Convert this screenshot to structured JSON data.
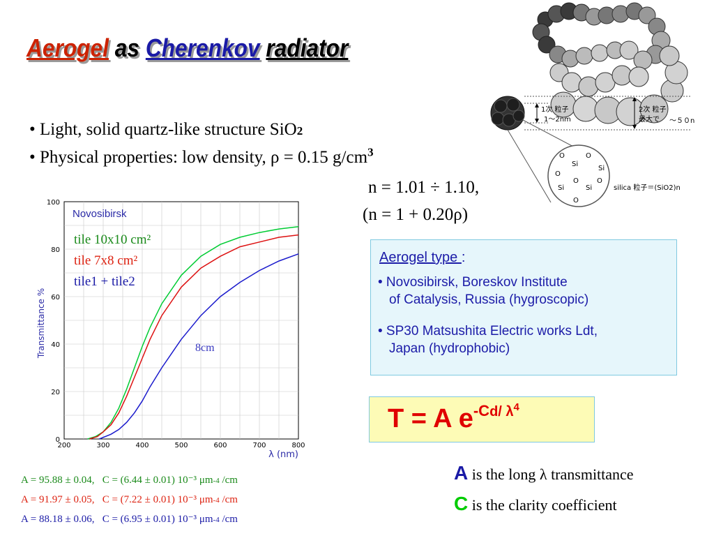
{
  "title": {
    "part1": "Aerogel",
    "part2": "as",
    "part3": "Cherenkov",
    "part4": "radiator"
  },
  "bullets": [
    {
      "bullet": "•",
      "text": "Light, solid quartz-like structure SiO",
      "sub": "2"
    },
    {
      "bullet": "•",
      "text": "Physical properties:  low density, ρ = 0.15 g/cm",
      "sup": "3"
    }
  ],
  "n_range": "n = 1.01 ÷ 1.10,",
  "n_formula": "(n = 1 + 0.20ρ)",
  "molecule": {
    "primary_label": "1次 粒子",
    "primary_size": "1〜2nm",
    "secondary_label": "2次 粒子",
    "secondary_size": "最大で",
    "secondary_extent": "〜５０n",
    "silica_label": "silica 粒子＝(SiO2)n",
    "si_atom": "Si",
    "o_atom": "O",
    "colors": {
      "dark": "#3a3a3a",
      "light": "#c8c8c8",
      "mid": "#8a8a8a"
    }
  },
  "chart_data": {
    "type": "line",
    "title": "Novosibirsk",
    "ylabel": "Transmittance %",
    "xlabel": "λ (nm)",
    "xlim": [
      200,
      800
    ],
    "ylim": [
      0,
      100
    ],
    "x_ticks": [
      "200",
      "300",
      "400",
      "500",
      "600",
      "700",
      "800"
    ],
    "y_ticks": [
      "0",
      "20",
      "40",
      "60",
      "80",
      "100"
    ],
    "annotation": "8cm",
    "series": [
      {
        "name": "tile 10x10 cm²",
        "color": "#00cc33",
        "x": [
          260,
          280,
          300,
          320,
          340,
          360,
          380,
          400,
          420,
          450,
          500,
          550,
          600,
          650,
          700,
          750,
          800
        ],
        "y": [
          0,
          1,
          3,
          7,
          13,
          21,
          30,
          39,
          47,
          57,
          69,
          77,
          82,
          85,
          87,
          88.5,
          89.5
        ]
      },
      {
        "name": "tile 7x8 cm²",
        "color": "#dd1111",
        "x": [
          265,
          285,
          300,
          320,
          340,
          360,
          380,
          400,
          420,
          450,
          500,
          550,
          600,
          650,
          700,
          750,
          800
        ],
        "y": [
          0,
          1,
          3,
          6,
          11,
          18,
          26,
          34,
          42,
          52,
          64,
          72,
          77,
          81,
          83,
          85,
          86
        ]
      },
      {
        "name": "tile1 + tile2",
        "color": "#1a1acc",
        "x": [
          290,
          320,
          340,
          360,
          380,
          400,
          420,
          450,
          500,
          550,
          600,
          650,
          700,
          750,
          800
        ],
        "y": [
          0,
          2,
          4,
          7,
          11,
          16,
          22,
          30,
          42,
          52,
          60,
          66,
          71,
          75,
          78
        ]
      }
    ]
  },
  "legend": [
    {
      "label": "tile 10x10 cm²",
      "color": "#1a8a1a"
    },
    {
      "label": "tile 7x8 cm²",
      "color": "#dd2211"
    },
    {
      "label": "tile1 + tile2",
      "color": "#1a1aa6"
    }
  ],
  "fits": [
    {
      "a": "A = 95.88 ± 0.04,",
      "c": "C = (6.44 ± 0.01) 10⁻³ ",
      "unit": "μm",
      "exp": "-4",
      "tail": " /cm",
      "color": "#1a8a1a"
    },
    {
      "a": "A = 91.97 ± 0.05,",
      "c": "C = (7.22 ± 0.01) 10⁻³ ",
      "unit": "μm",
      "exp": "-4",
      "tail": " /cm",
      "color": "#dd2211"
    },
    {
      "a": "A = 88.18 ± 0.06,",
      "c": "C = (6.95 ± 0.01) 10⁻³ ",
      "unit": "μm",
      "exp": "-4",
      "tail": " /cm",
      "color": "#1a1aa6"
    }
  ],
  "infobox": {
    "heading": "Aerogel type ",
    "heading_colon": ":",
    "items": [
      {
        "line1": "• Novosibirsk, Boreskov Institute",
        "line2": "of Catalysis, Russia (hygroscopic)"
      },
      {
        "line1": "• SP30 Matsushita Electric works Ldt,",
        "line2": "Japan (hydrophobic)"
      }
    ]
  },
  "formula": {
    "lhs": "T = A e",
    "exp_c": "-C",
    "exp_rest": "d/ λ",
    "exp_pow": "4"
  },
  "definitions": [
    {
      "symbol": "A",
      "text": " is the long λ transmittance"
    },
    {
      "symbol": "C",
      "text": " is the clarity coefficient"
    }
  ]
}
